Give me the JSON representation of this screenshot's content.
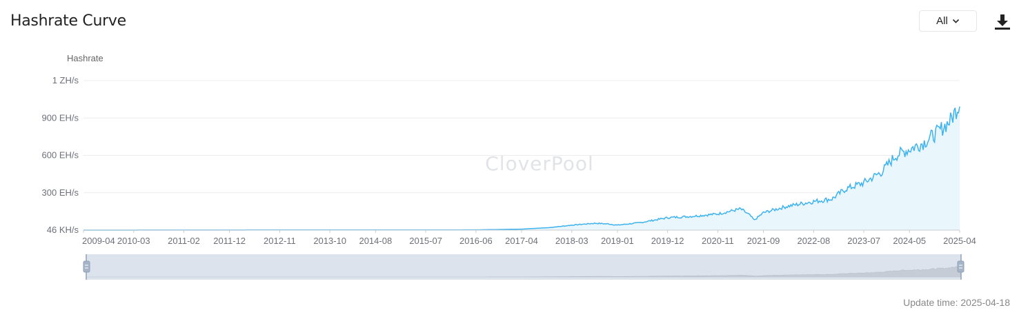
{
  "header": {
    "title": "Hashrate Curve",
    "range_selected": "All",
    "download_icon": "download-icon",
    "chevron_icon": "chevron-down-icon"
  },
  "watermark": "CloverPool",
  "footer": {
    "update_label": "Update time: 2025-04-18"
  },
  "colors": {
    "line": "#3cb2ef",
    "area": "#e9f6fc",
    "grid": "#ececec",
    "slider_bg": "#dde3ec"
  },
  "chart_data": {
    "type": "area",
    "title": "Hashrate Curve",
    "ylabel": "Hashrate",
    "xlabel": "",
    "x_ticks": [
      "2009-04",
      "2010-03",
      "2011-02",
      "2011-12",
      "2012-11",
      "2013-10",
      "2014-08",
      "2015-07",
      "2016-06",
      "2017-04",
      "2018-03",
      "2019-01",
      "2019-12",
      "2020-11",
      "2021-09",
      "2022-08",
      "2023-07",
      "2024-05",
      "2025-04"
    ],
    "y_ticks": [
      "46 KH/s",
      "300 EH/s",
      "600 EH/s",
      "900 EH/s",
      "1 ZH/s"
    ],
    "y_tick_values": [
      0,
      300,
      600,
      900,
      1200
    ],
    "y_unit": "EH/s",
    "ylim": [
      0,
      1200
    ],
    "grid": true,
    "legend": "none",
    "series": [
      {
        "x": [
          "2009-04",
          "2016-06",
          "2017-04",
          "2017-10",
          "2018-03",
          "2018-08",
          "2018-11",
          "2019-01",
          "2019-06",
          "2019-12",
          "2020-05",
          "2020-11",
          "2021-04",
          "2021-06",
          "2021-07",
          "2021-09",
          "2022-02",
          "2022-08",
          "2022-12",
          "2023-03",
          "2023-07",
          "2023-11",
          "2024-02",
          "2024-05",
          "2024-08",
          "2024-11",
          "2025-02",
          "2025-04"
        ],
        "values": [
          0,
          2,
          8,
          20,
          40,
          55,
          50,
          40,
          60,
          100,
          110,
          130,
          170,
          120,
          80,
          140,
          190,
          230,
          250,
          330,
          380,
          470,
          600,
          650,
          700,
          780,
          880,
          1020
        ]
      }
    ]
  }
}
